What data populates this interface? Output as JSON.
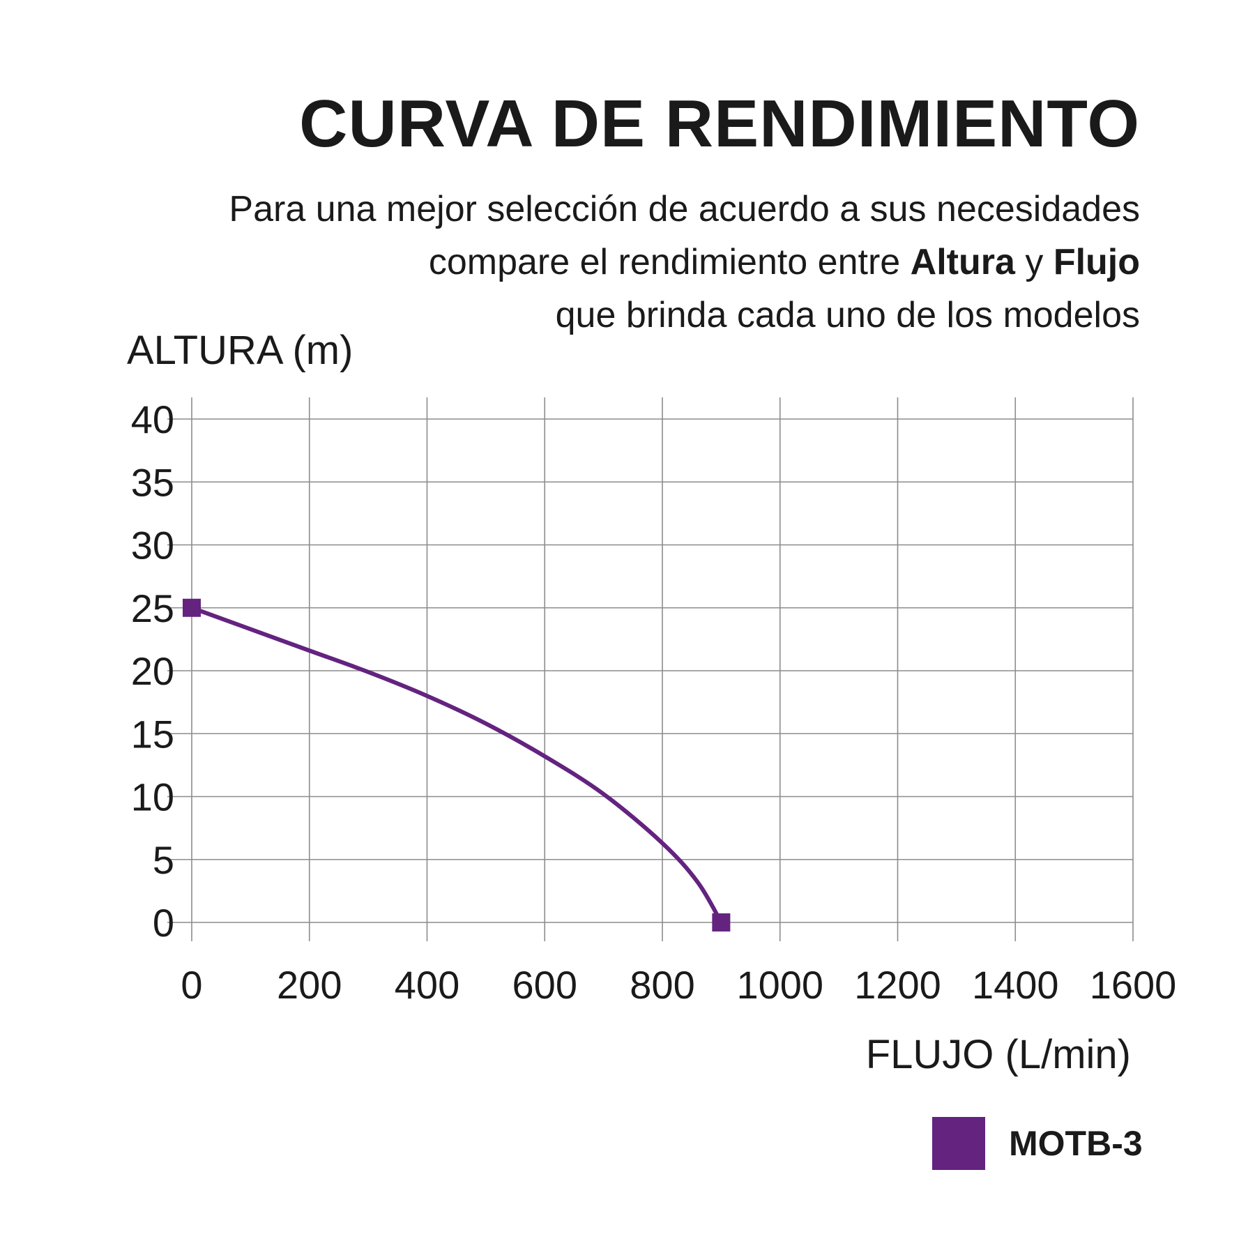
{
  "header": {
    "title": "CURVA DE RENDIMIENTO",
    "subtitle_line1": "Para una mejor selección de acuerdo a sus necesidades",
    "subtitle_line2_pre": "compare el rendimiento entre ",
    "subtitle_line2_bold1": "Altura",
    "subtitle_line2_mid": " y ",
    "subtitle_line2_bold2": "Flujo",
    "subtitle_line3": "que brinda cada uno de los modelos"
  },
  "chart_data": {
    "type": "line",
    "xlabel": "FLUJO (L/min)",
    "ylabel": "ALTURA (m)",
    "xlim": [
      0,
      1680
    ],
    "ylim": [
      0,
      40
    ],
    "xticks": [
      0,
      200,
      400,
      600,
      800,
      1000,
      1200,
      1400,
      1600
    ],
    "yticks": [
      0,
      5,
      10,
      15,
      20,
      25,
      30,
      35,
      40
    ],
    "grid": true,
    "legend_position": "bottom-right",
    "series": [
      {
        "name": "MOTB-3",
        "color": "#63237f",
        "x": [
          0,
          100,
          200,
          300,
          400,
          500,
          600,
          700,
          800,
          860,
          900
        ],
        "y": [
          25,
          23.3,
          21.6,
          19.9,
          18,
          15.8,
          13.2,
          10.2,
          6.3,
          3.2,
          0
        ],
        "markers": [
          [
            0,
            25
          ],
          [
            900,
            0
          ]
        ]
      }
    ]
  }
}
